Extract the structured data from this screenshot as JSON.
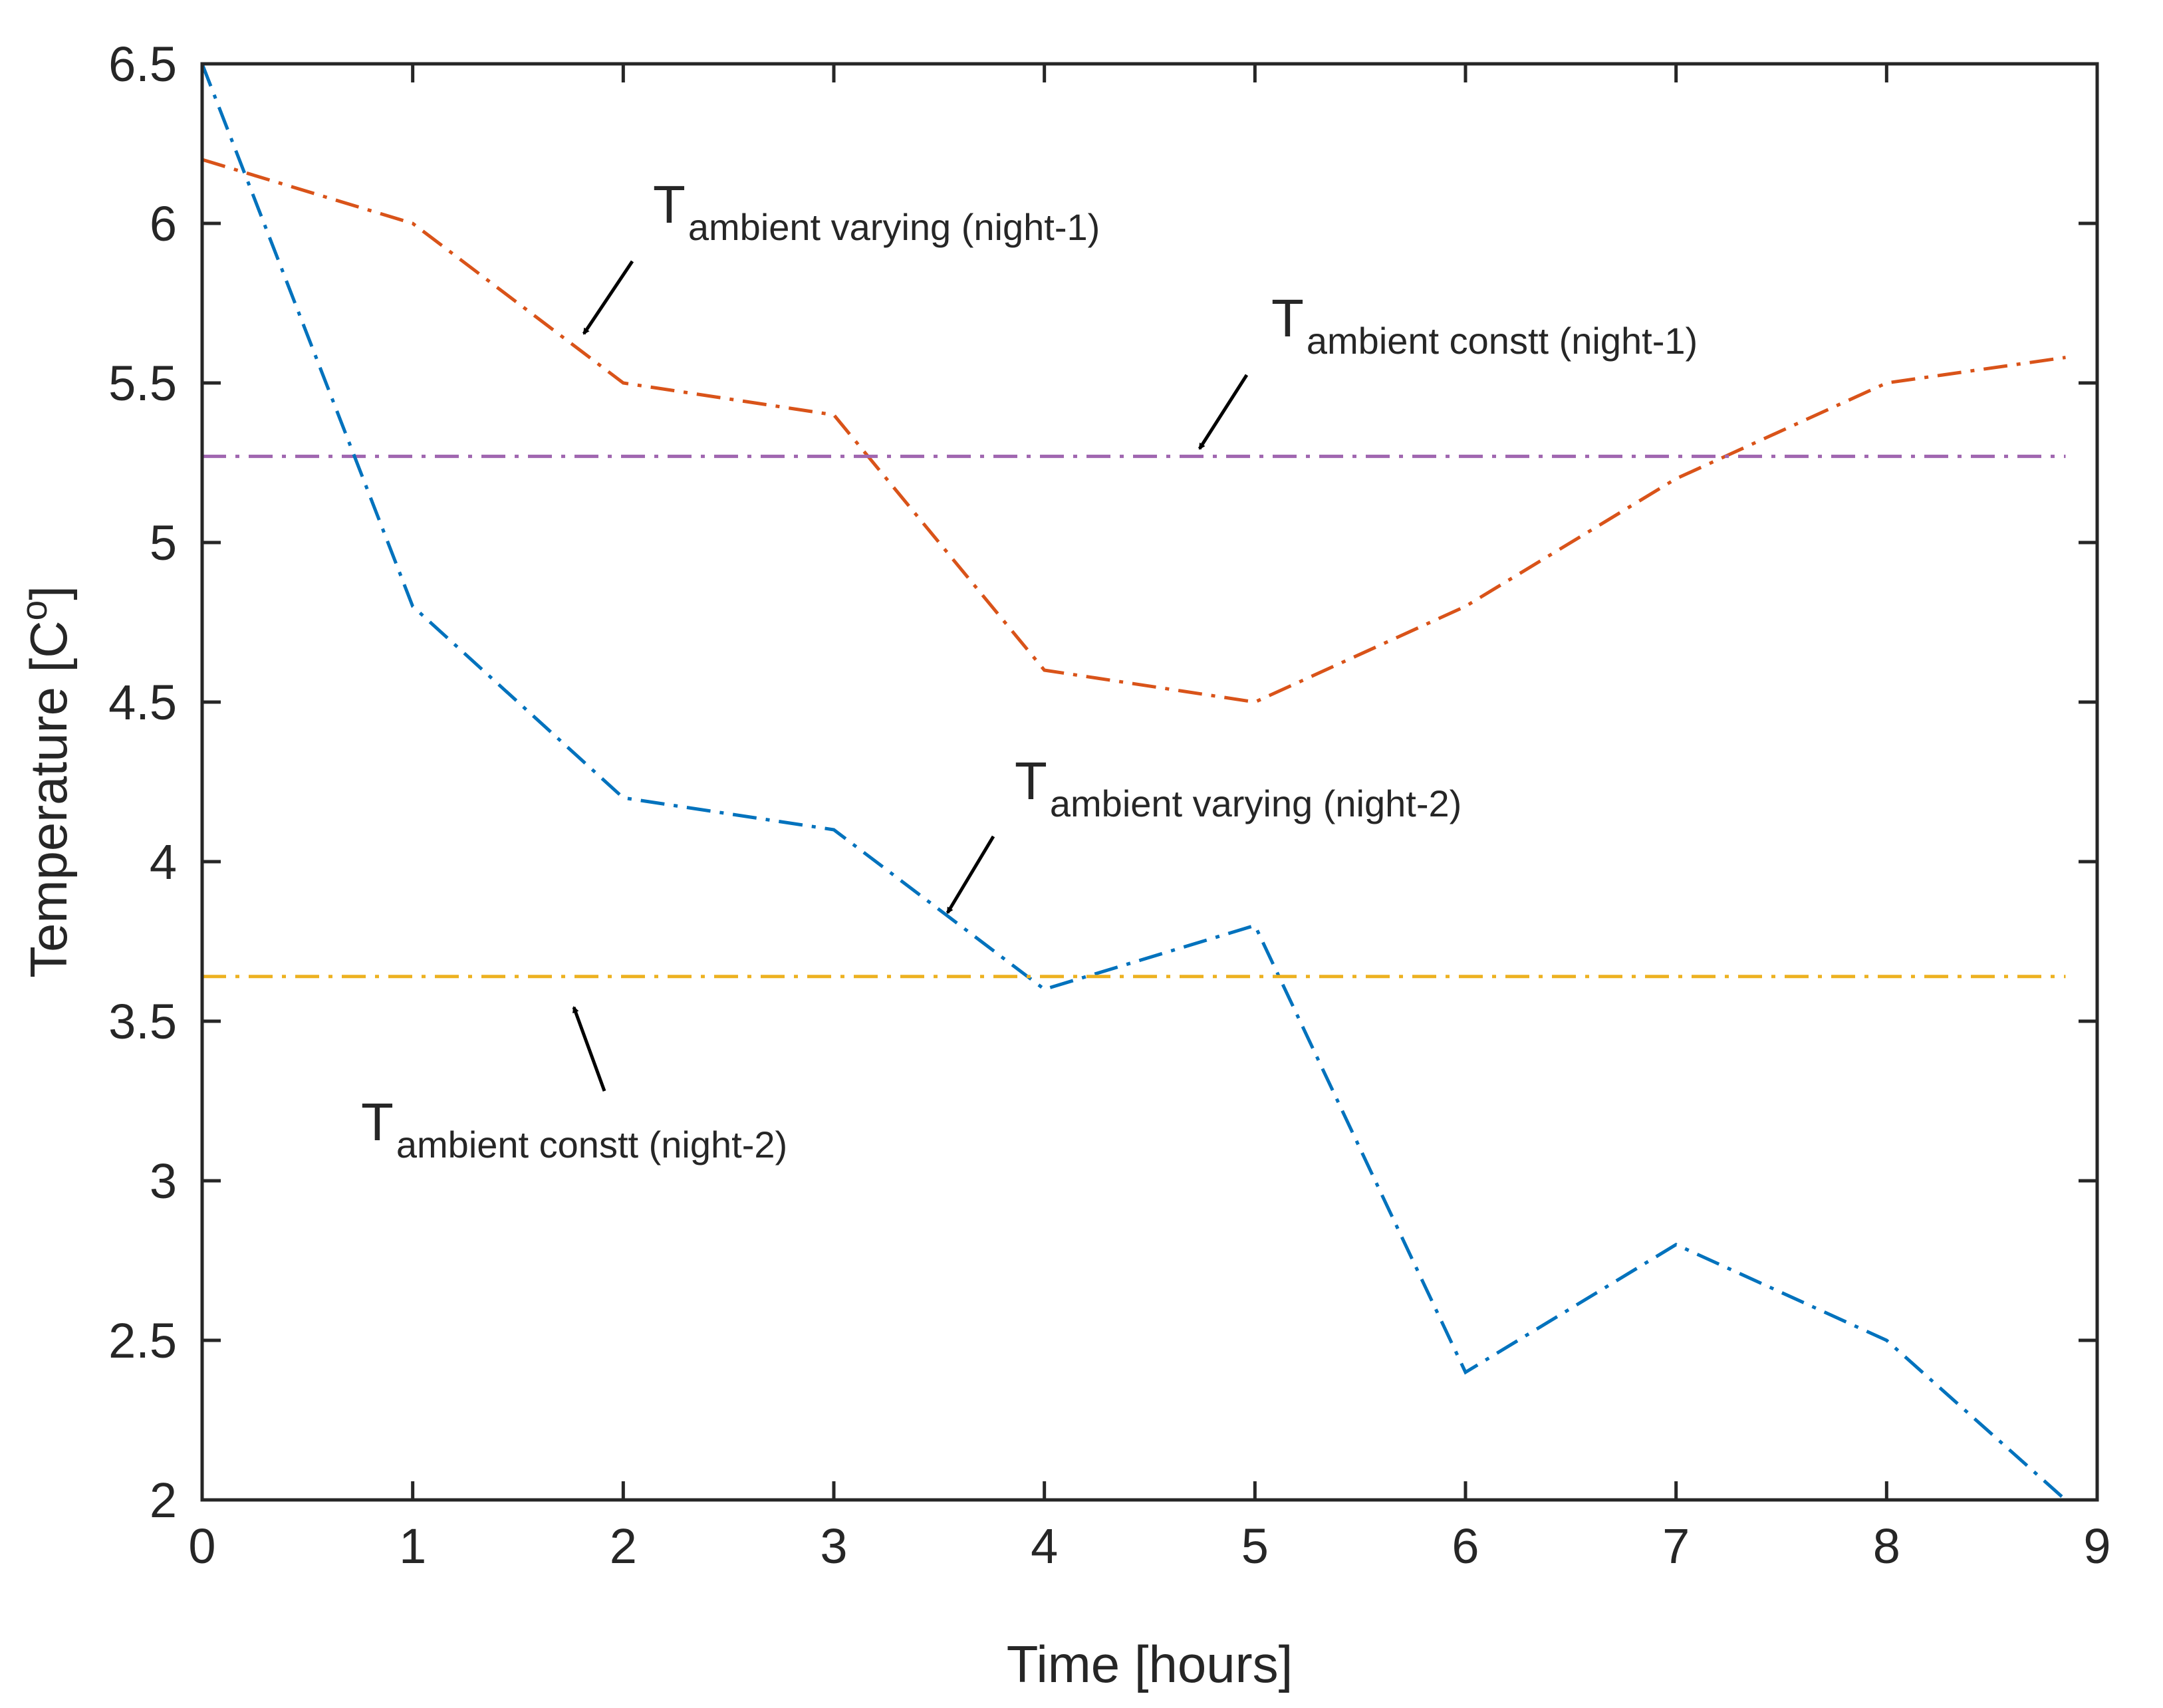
{
  "chart_data": {
    "type": "line",
    "title": "",
    "xlabel": "Time [hours]",
    "ylabel": "Temperature [C",
    "ylabel_superscript": "o",
    "ylabel_suffix": "]",
    "xlim": [
      0,
      9
    ],
    "ylim": [
      2,
      6.5
    ],
    "xticks": [
      "0",
      "1",
      "2",
      "3",
      "4",
      "5",
      "6",
      "7",
      "8",
      "9"
    ],
    "yticks": [
      "2",
      "2.5",
      "3",
      "3.5",
      "4",
      "4.5",
      "5",
      "5.5",
      "6",
      "6.5"
    ],
    "grid": false,
    "series": [
      {
        "name": "T ambient varying (night-1)",
        "color": "#D95319",
        "style": "dash-dot",
        "x": [
          0,
          1,
          2,
          3,
          4,
          5,
          6,
          7,
          8,
          8.85
        ],
        "y": [
          6.2,
          6.0,
          5.5,
          5.4,
          4.6,
          4.5,
          4.8,
          5.2,
          5.5,
          5.58
        ]
      },
      {
        "name": "T ambient constt (night-1)",
        "color": "#A066B0",
        "style": "dash-dot",
        "x": [
          0,
          8.85
        ],
        "y": [
          5.27,
          5.27
        ]
      },
      {
        "name": "T ambient varying (night-2)",
        "color": "#0072BD",
        "style": "dash-dot",
        "x": [
          0,
          1,
          2,
          3,
          4,
          5,
          6,
          7,
          8,
          8.85
        ],
        "y": [
          6.5,
          4.8,
          4.2,
          4.1,
          3.6,
          3.8,
          2.4,
          2.8,
          2.5,
          2.0
        ]
      },
      {
        "name": "T ambient constt (night-2)",
        "color": "#EDB120",
        "style": "dash-dot",
        "x": [
          0,
          8.85
        ],
        "y": [
          3.64,
          3.64
        ]
      }
    ],
    "annotations": [
      {
        "main": "T",
        "sub": "ambient varying (night-1)"
      },
      {
        "main": "T",
        "sub": "ambient constt (night-1)"
      },
      {
        "main": "T",
        "sub": "ambient varying (night-2)"
      },
      {
        "main": "T",
        "sub": "ambient constt (night-2)"
      }
    ]
  }
}
